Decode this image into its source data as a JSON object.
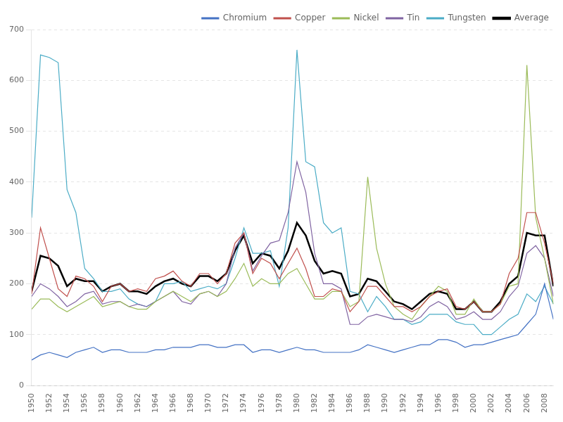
{
  "chart_data": {
    "type": "line",
    "x": [
      1950,
      1951,
      1952,
      1953,
      1954,
      1955,
      1956,
      1957,
      1958,
      1959,
      1960,
      1961,
      1962,
      1963,
      1964,
      1965,
      1966,
      1967,
      1968,
      1969,
      1970,
      1971,
      1972,
      1973,
      1974,
      1975,
      1976,
      1977,
      1978,
      1979,
      1980,
      1981,
      1982,
      1983,
      1984,
      1985,
      1986,
      1987,
      1988,
      1989,
      1990,
      1991,
      1992,
      1993,
      1994,
      1995,
      1996,
      1997,
      1998,
      1999,
      2000,
      2001,
      2002,
      2003,
      2004,
      2005,
      2006,
      2007,
      2008,
      2009
    ],
    "series": [
      {
        "name": "Chromium",
        "color": "#4472C4",
        "line_style": "solid",
        "values": [
          50,
          60,
          65,
          60,
          55,
          65,
          70,
          75,
          65,
          70,
          70,
          65,
          65,
          65,
          70,
          70,
          75,
          75,
          75,
          80,
          80,
          75,
          75,
          80,
          80,
          65,
          70,
          70,
          65,
          70,
          75,
          70,
          70,
          65,
          65,
          65,
          65,
          70,
          80,
          75,
          70,
          65,
          70,
          75,
          80,
          80,
          90,
          90,
          85,
          75,
          80,
          80,
          85,
          90,
          95,
          100,
          120,
          140,
          200,
          130
        ]
      },
      {
        "name": "Copper",
        "color": "#C0504D",
        "line_style": "solid",
        "values": [
          180,
          310,
          250,
          190,
          175,
          215,
          210,
          195,
          165,
          195,
          200,
          185,
          190,
          185,
          210,
          215,
          225,
          205,
          195,
          220,
          220,
          200,
          220,
          280,
          300,
          220,
          250,
          240,
          210,
          240,
          270,
          230,
          175,
          175,
          190,
          185,
          145,
          165,
          195,
          195,
          175,
          155,
          155,
          145,
          155,
          175,
          185,
          190,
          155,
          150,
          165,
          145,
          145,
          160,
          220,
          250,
          340,
          340,
          280,
          200
        ]
      },
      {
        "name": "Nickel",
        "color": "#9BBB59",
        "line_style": "solid",
        "values": [
          150,
          170,
          170,
          155,
          145,
          155,
          165,
          175,
          155,
          160,
          165,
          155,
          150,
          150,
          165,
          175,
          185,
          175,
          165,
          180,
          185,
          175,
          185,
          210,
          240,
          195,
          210,
          200,
          200,
          220,
          230,
          200,
          170,
          170,
          185,
          185,
          155,
          165,
          410,
          270,
          200,
          155,
          140,
          130,
          155,
          175,
          195,
          185,
          140,
          140,
          170,
          145,
          145,
          160,
          195,
          200,
          630,
          330,
          250,
          160
        ]
      },
      {
        "name": "Tin",
        "color": "#8064A2",
        "line_style": "solid",
        "values": [
          175,
          200,
          190,
          175,
          155,
          165,
          180,
          185,
          160,
          165,
          165,
          155,
          160,
          155,
          165,
          175,
          185,
          165,
          160,
          180,
          185,
          175,
          200,
          270,
          300,
          225,
          255,
          280,
          285,
          340,
          440,
          380,
          260,
          200,
          200,
          190,
          120,
          120,
          135,
          140,
          135,
          130,
          130,
          125,
          135,
          155,
          165,
          155,
          130,
          135,
          145,
          130,
          130,
          145,
          175,
          195,
          260,
          275,
          250,
          175
        ]
      },
      {
        "name": "Tungsten",
        "color": "#4BACC6",
        "line_style": "solid",
        "values": [
          330,
          650,
          645,
          635,
          385,
          340,
          230,
          210,
          185,
          185,
          190,
          170,
          160,
          155,
          165,
          200,
          200,
          205,
          185,
          190,
          195,
          190,
          200,
          250,
          310,
          260,
          260,
          265,
          195,
          310,
          660,
          440,
          430,
          320,
          300,
          310,
          185,
          180,
          145,
          175,
          155,
          130,
          130,
          120,
          125,
          140,
          140,
          140,
          125,
          120,
          120,
          100,
          100,
          115,
          130,
          140,
          180,
          165,
          195,
          160
        ]
      },
      {
        "name": "Average",
        "color": "#000000",
        "line_style": "thick",
        "values": [
          185,
          255,
          250,
          235,
          195,
          210,
          205,
          205,
          185,
          195,
          200,
          185,
          185,
          180,
          195,
          205,
          210,
          200,
          195,
          215,
          215,
          205,
          220,
          265,
          295,
          240,
          260,
          255,
          230,
          265,
          320,
          295,
          245,
          220,
          225,
          220,
          175,
          180,
          210,
          205,
          185,
          165,
          160,
          150,
          165,
          180,
          185,
          180,
          150,
          150,
          165,
          145,
          145,
          165,
          200,
          215,
          300,
          295,
          295,
          195
        ]
      }
    ],
    "xlim": [
      1950,
      2009
    ],
    "xticks": [
      1950,
      1952,
      1954,
      1956,
      1958,
      1960,
      1962,
      1964,
      1966,
      1968,
      1970,
      1972,
      1974,
      1976,
      1978,
      1980,
      1982,
      1984,
      1986,
      1988,
      1990,
      1992,
      1994,
      1996,
      1998,
      2000,
      2002,
      2004,
      2006,
      2008
    ],
    "ylim": [
      0,
      700
    ],
    "yticks": [
      0,
      100,
      200,
      300,
      400,
      500,
      600,
      700
    ],
    "grid": "y",
    "legend": "upper right"
  }
}
